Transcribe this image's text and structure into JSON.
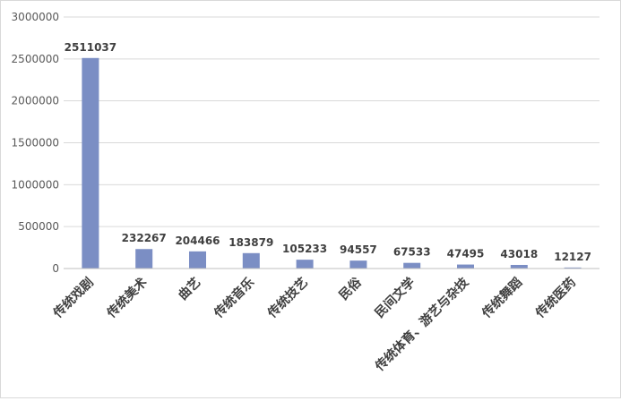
{
  "chart_data": {
    "type": "bar",
    "categories": [
      "传统戏剧",
      "传统美术",
      "曲艺",
      "传统音乐",
      "传统技艺",
      "民俗",
      "民间文学",
      "传统体育、游艺与杂技",
      "传统舞蹈",
      "传统医药"
    ],
    "values": [
      2511037,
      232267,
      204466,
      183879,
      105233,
      94557,
      67533,
      47495,
      43018,
      12127
    ],
    "data_labels": [
      "2511037",
      "232267",
      "204466",
      "183879",
      "105233",
      "94557",
      "67533",
      "47495",
      "43018",
      "12127"
    ],
    "ylim": [
      0,
      3000000
    ],
    "yticks": [
      0,
      500000,
      1000000,
      1500000,
      2000000,
      2500000,
      3000000
    ],
    "ytick_labels": [
      "0",
      "500000",
      "1000000",
      "1500000",
      "2000000",
      "2500000",
      "3000000"
    ],
    "grid": true,
    "legend": "none",
    "title": "",
    "xlabel": "",
    "ylabel": "",
    "bar_color": "#7b8ec4"
  }
}
